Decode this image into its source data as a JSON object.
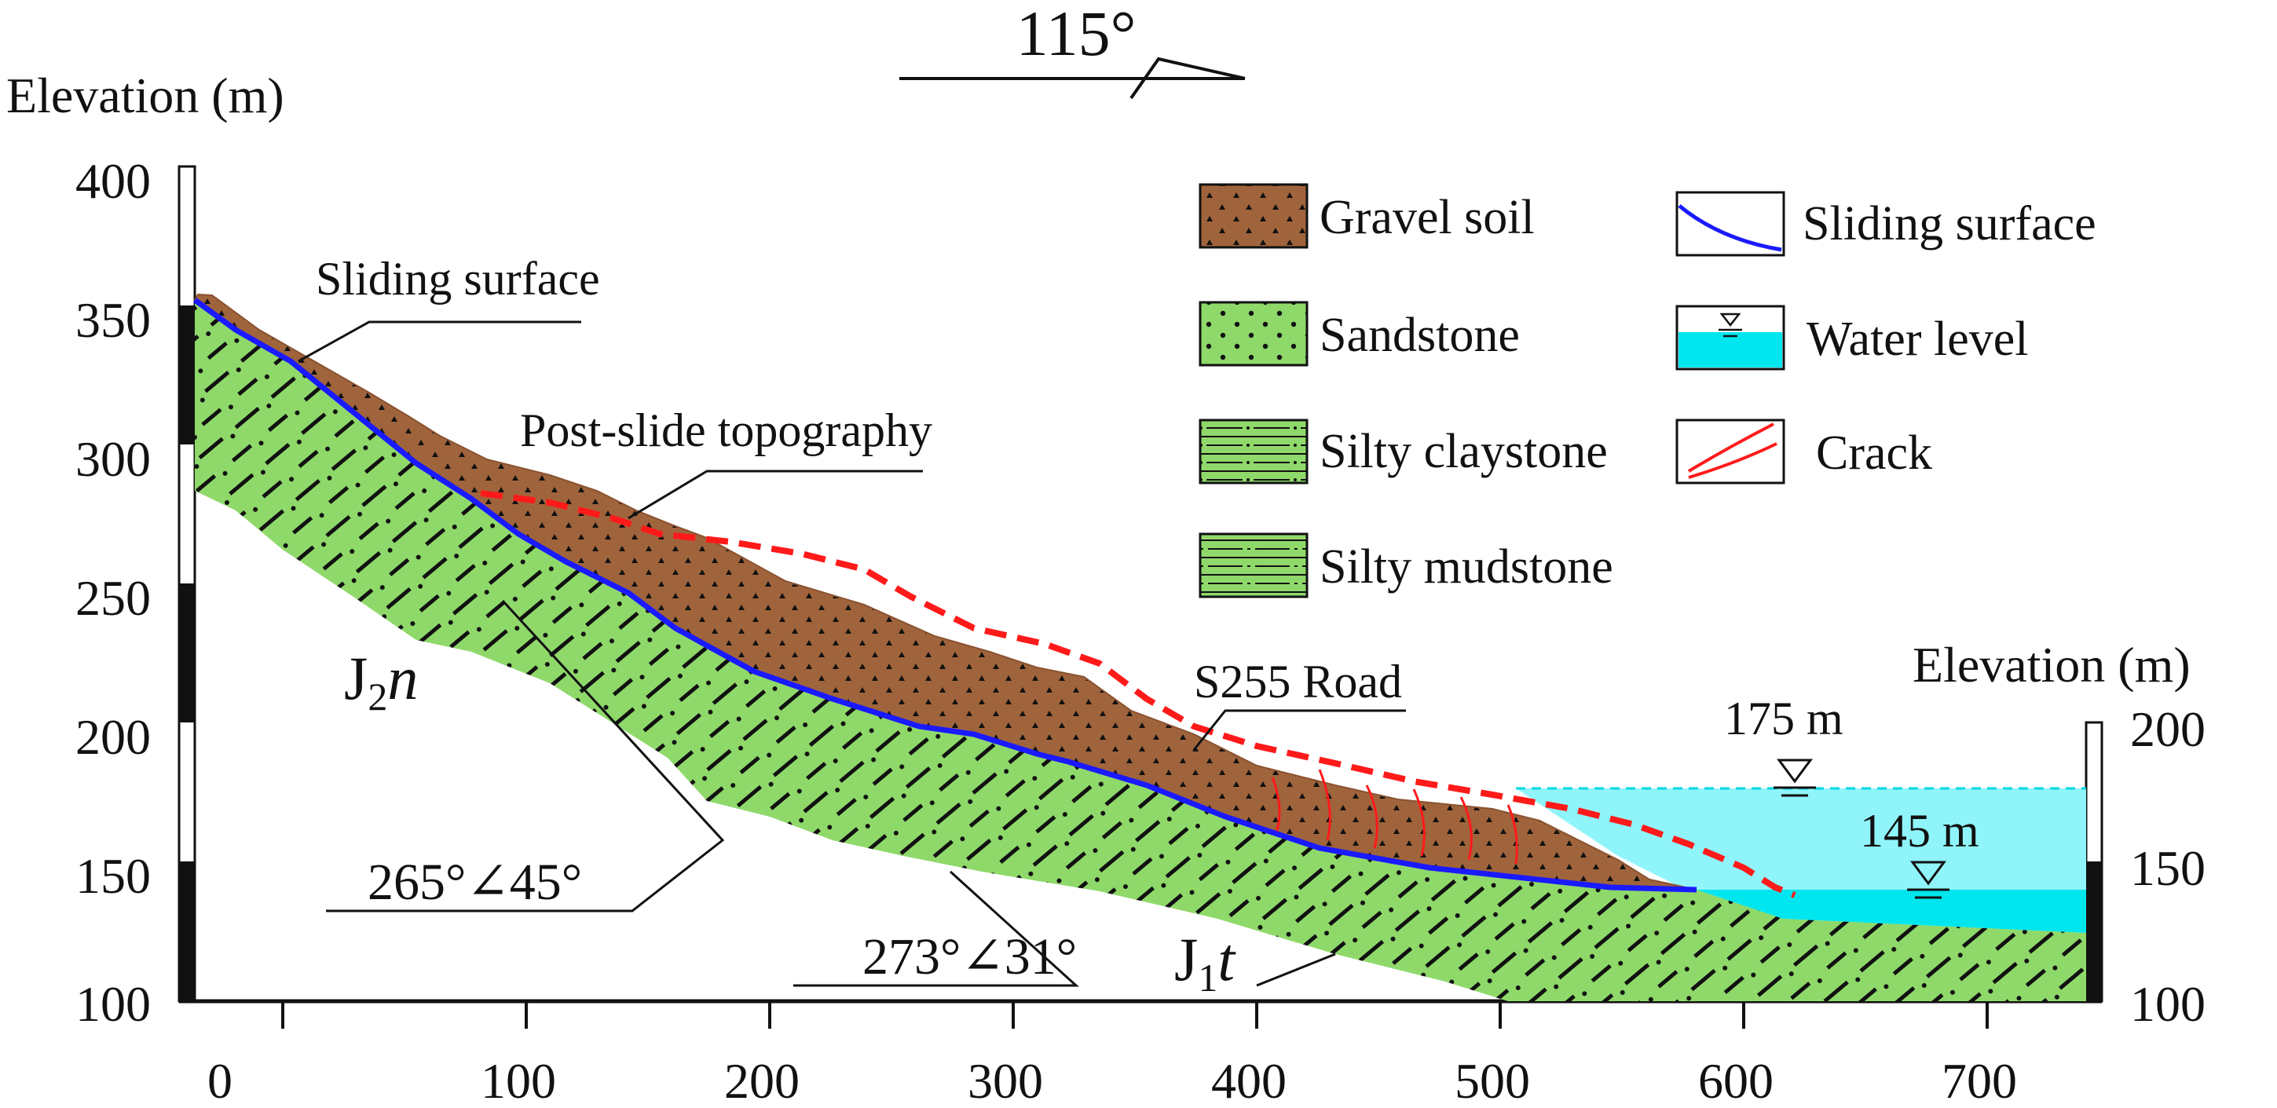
{
  "orientation": {
    "label": "115°"
  },
  "left_axis": {
    "title": "Elevation (m)",
    "ticks": [
      "400",
      "350",
      "300",
      "250",
      "200",
      "150",
      "100"
    ]
  },
  "right_axis": {
    "title": "Elevation (m)",
    "ticks": [
      "200",
      "150",
      "100"
    ]
  },
  "x_axis": {
    "ticks": [
      "0",
      "100",
      "200",
      "300",
      "400",
      "500",
      "600",
      "700"
    ]
  },
  "legend": {
    "gravel_soil": "Gravel soil",
    "sandstone": "Sandstone",
    "silty_claystone": "Silty claystone",
    "silty_mudstone": "Silty mudstone",
    "sliding_surface": "Sliding surface",
    "water_level": "Water level",
    "crack": "Crack"
  },
  "annotations": {
    "sliding_surface": "Sliding surface",
    "post_slide": "Post-slide topography",
    "s255": "S255 Road",
    "j2n_main": "J",
    "j2n_sub": "2",
    "j2n_italic": "n",
    "attitude_1": "265°∠45°",
    "attitude_2": "273°∠31°",
    "j1t_main": "J",
    "j1t_sub": "1",
    "j1t_italic": "t",
    "water_175": "175 m",
    "water_145": "145 m"
  },
  "colors": {
    "gravel": "#a0643c",
    "rock": "#8fd96a",
    "water": "#8ff5fa",
    "water_deep": "#00e6ee",
    "sliding": "#1a1aff",
    "crack": "#ff1a1a"
  }
}
